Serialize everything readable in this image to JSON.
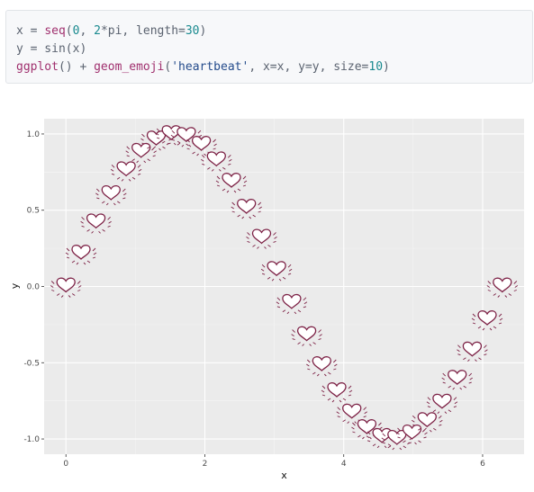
{
  "code": {
    "line1": {
      "var": "x",
      "op": " = ",
      "fn": "seq",
      "open": "(",
      "a": "0",
      "sep1": ", ",
      "b": "2",
      "mul": "*pi, length=",
      "c": "30",
      "close": ")"
    },
    "line2": {
      "text": "y = sin(x)"
    },
    "line3": {
      "fn1": "ggplot",
      "mid": "() + ",
      "fn2": "geom_emoji",
      "open": "(",
      "str": "'heartbeat'",
      "rest": ", x=x, y=y, size=",
      "num": "10",
      "close": ")"
    }
  },
  "colors": {
    "background": "#ffffff",
    "panel": "#ebebeb",
    "grid_major": "#ffffff",
    "emoji": "#7d2246"
  },
  "emoji_icon": "heartbeat-icon",
  "chart_data": {
    "type": "scatter",
    "title": "",
    "xlabel": "x",
    "ylabel": "y",
    "xlim": [
      -0.314,
      6.597
    ],
    "ylim": [
      -1.1,
      1.1
    ],
    "x_ticks": [
      0,
      2,
      4,
      6
    ],
    "x_tick_labels": [
      "0",
      "2",
      "4",
      "6"
    ],
    "y_ticks": [
      -1.0,
      -0.5,
      0.0,
      0.5,
      1.0
    ],
    "y_tick_labels": [
      "-1.0",
      "-0.5",
      "0.0",
      "0.5",
      "1.0"
    ],
    "grid": true,
    "marker": "heartbeat",
    "x": [
      0.0,
      0.217,
      0.433,
      0.65,
      0.867,
      1.083,
      1.3,
      1.517,
      1.733,
      1.95,
      2.167,
      2.383,
      2.6,
      2.817,
      3.033,
      3.25,
      3.467,
      3.683,
      3.9,
      4.117,
      4.333,
      4.55,
      4.766,
      4.983,
      5.2,
      5.416,
      5.633,
      5.85,
      6.066,
      6.283
    ],
    "y": [
      0.0,
      0.215,
      0.42,
      0.605,
      0.762,
      0.883,
      0.964,
      0.999,
      0.987,
      0.929,
      0.827,
      0.687,
      0.516,
      0.319,
      0.108,
      -0.108,
      -0.319,
      -0.516,
      -0.687,
      -0.827,
      -0.929,
      -0.987,
      -0.999,
      -0.964,
      -0.883,
      -0.762,
      -0.605,
      -0.42,
      -0.215,
      0.0
    ]
  }
}
